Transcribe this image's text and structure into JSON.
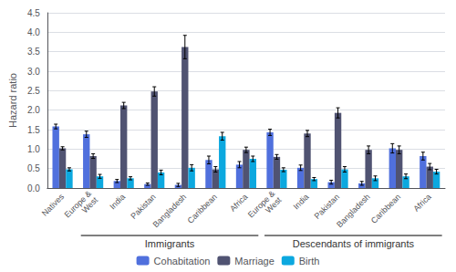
{
  "chart_data": {
    "type": "bar",
    "categories": [
      "Natives",
      "Europe &\nWest",
      "India",
      "Pakistan",
      "Bangladesh",
      "Caribbean",
      "Africa",
      "Europe &\nWest",
      "India",
      "Pakistan",
      "Bangladesh",
      "Caribbean",
      "Africa"
    ],
    "series": [
      {
        "name": "Cohabitation",
        "values": [
          1.58,
          1.38,
          0.18,
          0.1,
          0.08,
          0.72,
          0.6,
          1.43,
          0.52,
          0.15,
          0.12,
          1.02,
          0.82
        ],
        "errors": [
          0.06,
          0.08,
          0.04,
          0.03,
          0.04,
          0.1,
          0.08,
          0.08,
          0.07,
          0.05,
          0.05,
          0.12,
          0.1
        ]
      },
      {
        "name": "Marriage",
        "values": [
          1.02,
          0.82,
          2.12,
          2.48,
          3.62,
          0.48,
          0.98,
          0.8,
          1.4,
          1.93,
          0.98,
          0.98,
          0.55
        ],
        "errors": [
          0.04,
          0.06,
          0.08,
          0.12,
          0.3,
          0.07,
          0.07,
          0.06,
          0.08,
          0.13,
          0.1,
          0.1,
          0.08
        ]
      },
      {
        "name": "Birth",
        "values": [
          0.48,
          0.3,
          0.25,
          0.4,
          0.52,
          1.33,
          0.75,
          0.47,
          0.23,
          0.48,
          0.25,
          0.3,
          0.42
        ],
        "errors": [
          0.04,
          0.05,
          0.04,
          0.06,
          0.08,
          0.1,
          0.07,
          0.05,
          0.04,
          0.07,
          0.06,
          0.06,
          0.06
        ]
      }
    ],
    "ylabel": "Hazard ratio",
    "ylim": [
      0,
      4.5
    ],
    "yticks": [
      {
        "value": 0,
        "label": "0.0"
      },
      0.5,
      {
        "value": 1,
        "label": "1.0"
      },
      1.5,
      {
        "value": 2,
        "label": "2.0"
      },
      2.5,
      {
        "value": 3,
        "label": "3.0"
      },
      3.5,
      {
        "value": 4,
        "label": "4.0"
      },
      4.5
    ],
    "annotations": [
      {
        "text": "Immigrants",
        "from": "Europe &\nWest",
        "to": "Africa"
      },
      {
        "text": "Descendants of immigrants",
        "from": "Europe &\nWest",
        "to": "Africa"
      }
    ],
    "grid": true,
    "legend": "bottom"
  }
}
